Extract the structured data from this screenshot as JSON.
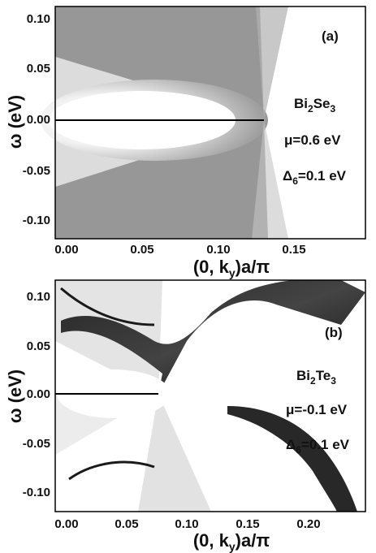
{
  "chart_data": [
    {
      "panel_label": "(a)",
      "type": "heatmap",
      "xlabel": "(0, k",
      "xlabel_sub": "y",
      "xlabel_tail": ")a/π",
      "ylabel": "ω (eV)",
      "xlim": [
        0,
        0.19
      ],
      "ylim": [
        -0.12,
        0.115
      ],
      "xticks": [
        "0.00",
        "0.05",
        "0.10",
        "0.15"
      ],
      "xtick_values": [
        0,
        0.05,
        0.1,
        0.15
      ],
      "yticks": [
        "0.10",
        "0.05",
        "0.00",
        "-0.05",
        "-0.10"
      ],
      "ytick_values": [
        0.1,
        0.05,
        0.0,
        -0.05,
        -0.1
      ],
      "material": "Bi",
      "material_sub1": "2",
      "material_mid": "Se",
      "material_sub2": "3",
      "mu": "μ=0.6 eV",
      "delta": "Δ",
      "delta_sub": "6",
      "delta_tail": "=0.1 eV",
      "features": {
        "dirac_point_k": 0.127,
        "flat_line_omega": 0.0
      }
    },
    {
      "panel_label": "(b)",
      "type": "heatmap",
      "xlabel": "(0, k",
      "xlabel_sub": "y",
      "xlabel_tail": ")a/π",
      "ylabel": "ω (eV)",
      "xlim": [
        0,
        0.235
      ],
      "ylim": [
        -0.12,
        0.12
      ],
      "xticks": [
        "0.00",
        "0.05",
        "0.10",
        "0.15",
        "0.20"
      ],
      "xtick_values": [
        0,
        0.05,
        0.1,
        0.15,
        0.2
      ],
      "yticks": [
        "0.10",
        "0.05",
        "0.00",
        "-0.05",
        "-0.10"
      ],
      "ytick_values": [
        0.1,
        0.05,
        0.0,
        -0.05,
        -0.1
      ],
      "material": "Bi",
      "material_sub1": "2",
      "material_mid": "Te",
      "material_sub2": "3",
      "mu": "μ=-0.1 eV",
      "delta": "Δ",
      "delta_sub": "6",
      "delta_tail": "=0.1 eV",
      "features": {
        "dirac_point_k": 0.08,
        "flat_line_omega": 0.0
      }
    }
  ]
}
